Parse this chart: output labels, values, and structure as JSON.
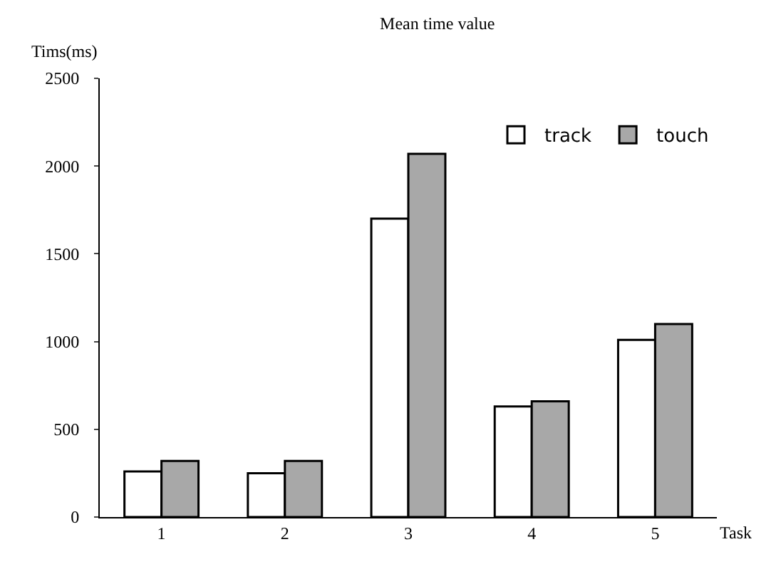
{
  "chart_data": {
    "type": "bar",
    "title": "Mean time value",
    "xlabel": "Task",
    "ylabel": "Tims(ms)",
    "categories": [
      "1",
      "2",
      "3",
      "4",
      "5"
    ],
    "series": [
      {
        "name": "track",
        "color": "#ffffff",
        "values": [
          260,
          250,
          1700,
          630,
          1010
        ]
      },
      {
        "name": "touch",
        "color": "#a8a8a8",
        "values": [
          320,
          320,
          2070,
          660,
          1100
        ]
      }
    ],
    "ylim": [
      0,
      2500
    ],
    "yticks": [
      0,
      500,
      1000,
      1500,
      2000,
      2500
    ],
    "legend": "top right"
  }
}
